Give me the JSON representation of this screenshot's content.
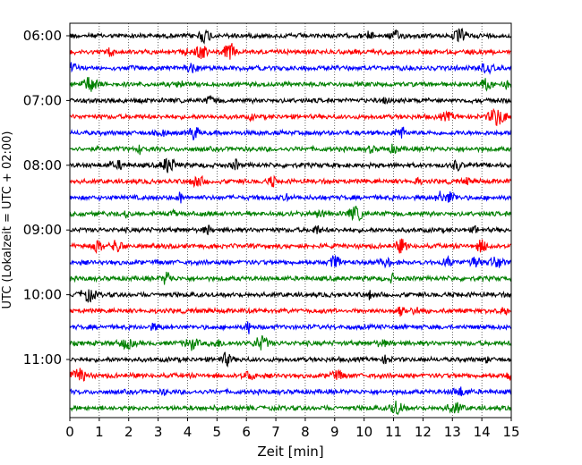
{
  "chart_data": {
    "type": "line",
    "title": "",
    "xlabel": "Zeit  [min]",
    "ylabel": "UTC (Lokalzeit = UTC + 02:00)",
    "xlim": [
      0,
      15
    ],
    "x_ticks": [
      0,
      1,
      2,
      3,
      4,
      5,
      6,
      7,
      8,
      9,
      10,
      11,
      12,
      13,
      14,
      15
    ],
    "y_tick_labels": [
      "06:00",
      "07:00",
      "08:00",
      "09:00",
      "10:00",
      "11:00"
    ],
    "grid": "vertical dotted lines at each minute",
    "trace_interval_minutes": 15,
    "color_cycle": [
      "#000000",
      "#ff0000",
      "#0000ff",
      "#008000"
    ],
    "traces": [
      {
        "start": "06:00",
        "color": "#000000"
      },
      {
        "start": "06:15",
        "color": "#ff0000"
      },
      {
        "start": "06:30",
        "color": "#0000ff"
      },
      {
        "start": "06:45",
        "color": "#008000"
      },
      {
        "start": "07:00",
        "color": "#000000"
      },
      {
        "start": "07:15",
        "color": "#ff0000"
      },
      {
        "start": "07:30",
        "color": "#0000ff"
      },
      {
        "start": "07:45",
        "color": "#008000"
      },
      {
        "start": "08:00",
        "color": "#000000"
      },
      {
        "start": "08:15",
        "color": "#ff0000"
      },
      {
        "start": "08:30",
        "color": "#0000ff"
      },
      {
        "start": "08:45",
        "color": "#008000"
      },
      {
        "start": "09:00",
        "color": "#000000"
      },
      {
        "start": "09:15",
        "color": "#ff0000"
      },
      {
        "start": "09:30",
        "color": "#0000ff"
      },
      {
        "start": "09:45",
        "color": "#008000"
      },
      {
        "start": "10:00",
        "color": "#000000"
      },
      {
        "start": "10:15",
        "color": "#ff0000"
      },
      {
        "start": "10:30",
        "color": "#0000ff"
      },
      {
        "start": "10:45",
        "color": "#008000"
      },
      {
        "start": "11:00",
        "color": "#000000"
      },
      {
        "start": "11:15",
        "color": "#ff0000"
      },
      {
        "start": "11:30",
        "color": "#0000ff"
      },
      {
        "start": "11:45",
        "color": "#008000"
      }
    ]
  }
}
